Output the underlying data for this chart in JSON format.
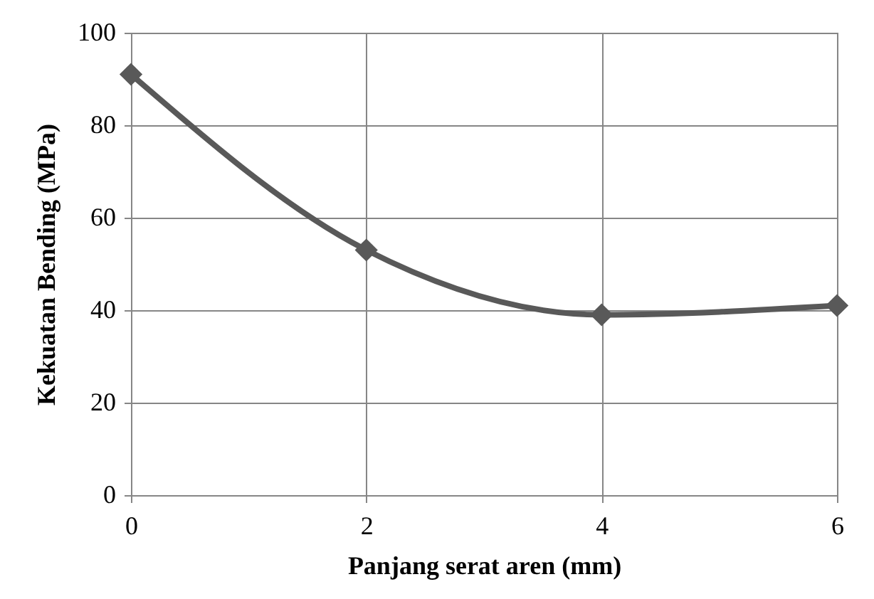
{
  "chart_data": {
    "type": "line",
    "xlabel": "Panjang serat aren (mm)",
    "ylabel": "Kekuatan Bending (MPa)",
    "x": [
      0,
      2,
      4,
      6
    ],
    "series": [
      {
        "color": "#595959",
        "values": [
          91,
          53,
          39,
          41
        ]
      }
    ],
    "xlim": [
      0,
      6
    ],
    "xticks": [
      0,
      2,
      4,
      6
    ],
    "ylim": [
      0,
      100
    ],
    "yticks": [
      0,
      20,
      40,
      60,
      80,
      100
    ],
    "grid": true,
    "marker": "diamond",
    "line_style": "solid",
    "legend": false
  }
}
